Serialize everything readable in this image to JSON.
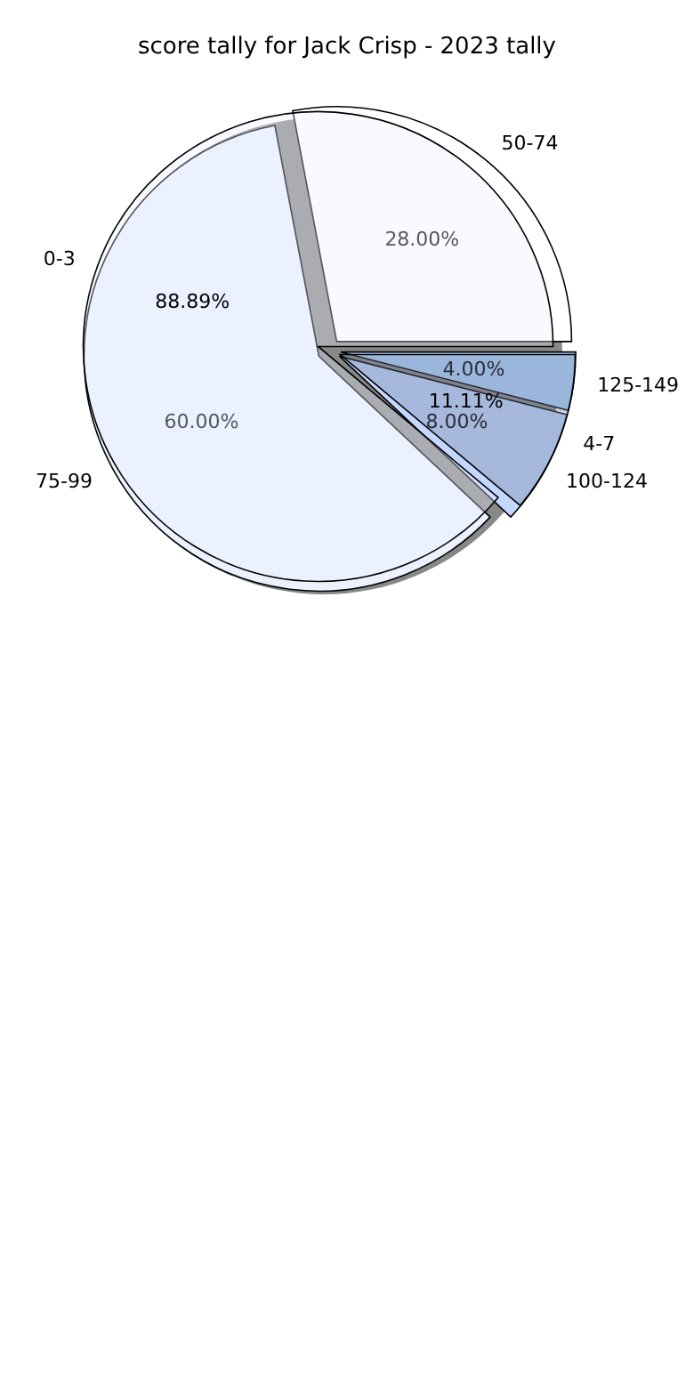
{
  "chart_data": [
    {
      "type": "pie",
      "title": "score tally for Jack Crisp - 2023 tally",
      "categories": [
        "50-74",
        "75-99",
        "100-124",
        "125-149"
      ],
      "values": [
        28,
        60,
        8,
        4
      ],
      "colors": [
        "#ffffff",
        "#ebf2fe",
        "#c4d7ff",
        "#b3d5ff"
      ],
      "value_labels": [
        "28.00%",
        "60.00%",
        "8.00%",
        "4.00%"
      ]
    },
    {
      "type": "pie",
      "categories": [
        "0-3",
        "4-7"
      ],
      "values": [
        88.89,
        11.11
      ],
      "colors": [
        "#ebf2fe",
        "#6f7f99"
      ],
      "value_labels": [
        "88.89%",
        "11.11%"
      ]
    }
  ]
}
